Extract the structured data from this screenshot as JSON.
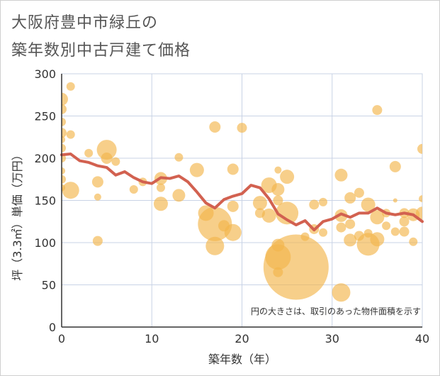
{
  "title_lines": [
    "大阪府豊中市緑丘の",
    "築年数別中古戸建て価格"
  ],
  "chart_data": {
    "type": "scatter",
    "xlabel": "築年数（年）",
    "ylabel": "坪（3.3㎡）単価（万円）",
    "xlim": [
      0,
      40
    ],
    "ylim": [
      0,
      300
    ],
    "x_ticks": [
      0,
      10,
      20,
      30,
      40
    ],
    "y_ticks": [
      0,
      50,
      100,
      150,
      200,
      250,
      300
    ],
    "grid": true,
    "annotation": "円の大きさは、取引のあった物件面積を示す",
    "colors": {
      "bubble": "#f2b54c",
      "line": "#d26150",
      "grid": "#c9d3e6",
      "text": "#333333"
    },
    "series": [
      {
        "type": "bubble",
        "points": [
          {
            "x": 0,
            "y": 270,
            "r": 9
          },
          {
            "x": 0,
            "y": 258,
            "r": 7
          },
          {
            "x": 0,
            "y": 243,
            "r": 6
          },
          {
            "x": 0,
            "y": 230,
            "r": 7
          },
          {
            "x": 0,
            "y": 222,
            "r": 5
          },
          {
            "x": 0,
            "y": 212,
            "r": 6
          },
          {
            "x": 0,
            "y": 200,
            "r": 6
          },
          {
            "x": 0,
            "y": 185,
            "r": 5
          },
          {
            "x": 0,
            "y": 175,
            "r": 6
          },
          {
            "x": 0,
            "y": 165,
            "r": 5
          },
          {
            "x": 1,
            "y": 285,
            "r": 6
          },
          {
            "x": 1,
            "y": 228,
            "r": 6
          },
          {
            "x": 1,
            "y": 162,
            "r": 12
          },
          {
            "x": 3,
            "y": 206,
            "r": 6
          },
          {
            "x": 4,
            "y": 172,
            "r": 8
          },
          {
            "x": 4,
            "y": 154,
            "r": 5
          },
          {
            "x": 4,
            "y": 102,
            "r": 7
          },
          {
            "x": 5,
            "y": 210,
            "r": 14
          },
          {
            "x": 5,
            "y": 200,
            "r": 8
          },
          {
            "x": 6,
            "y": 196,
            "r": 6
          },
          {
            "x": 8,
            "y": 163,
            "r": 6
          },
          {
            "x": 9,
            "y": 172,
            "r": 6
          },
          {
            "x": 11,
            "y": 176,
            "r": 9
          },
          {
            "x": 11,
            "y": 165,
            "r": 6
          },
          {
            "x": 11,
            "y": 146,
            "r": 10
          },
          {
            "x": 13,
            "y": 201,
            "r": 6
          },
          {
            "x": 13,
            "y": 156,
            "r": 9
          },
          {
            "x": 15,
            "y": 186,
            "r": 10
          },
          {
            "x": 16,
            "y": 135,
            "r": 11
          },
          {
            "x": 17,
            "y": 237,
            "r": 8
          },
          {
            "x": 17,
            "y": 122,
            "r": 24
          },
          {
            "x": 17,
            "y": 96,
            "r": 13
          },
          {
            "x": 18,
            "y": 120,
            "r": 8
          },
          {
            "x": 19,
            "y": 187,
            "r": 8
          },
          {
            "x": 19,
            "y": 143,
            "r": 8
          },
          {
            "x": 19,
            "y": 112,
            "r": 12
          },
          {
            "x": 20,
            "y": 236,
            "r": 7
          },
          {
            "x": 22,
            "y": 135,
            "r": 7
          },
          {
            "x": 22,
            "y": 147,
            "r": 10
          },
          {
            "x": 23,
            "y": 168,
            "r": 11
          },
          {
            "x": 23,
            "y": 132,
            "r": 10
          },
          {
            "x": 24,
            "y": 186,
            "r": 5
          },
          {
            "x": 24,
            "y": 163,
            "r": 9
          },
          {
            "x": 24,
            "y": 150,
            "r": 7
          },
          {
            "x": 24,
            "y": 97,
            "r": 9
          },
          {
            "x": 24,
            "y": 83,
            "r": 18
          },
          {
            "x": 24,
            "y": 65,
            "r": 7
          },
          {
            "x": 25,
            "y": 178,
            "r": 10
          },
          {
            "x": 25,
            "y": 135,
            "r": 16
          },
          {
            "x": 26,
            "y": 71,
            "r": 46
          },
          {
            "x": 27,
            "y": 107,
            "r": 6
          },
          {
            "x": 28,
            "y": 145,
            "r": 7
          },
          {
            "x": 28,
            "y": 116,
            "r": 7
          },
          {
            "x": 29,
            "y": 112,
            "r": 6
          },
          {
            "x": 29,
            "y": 148,
            "r": 6
          },
          {
            "x": 31,
            "y": 180,
            "r": 9
          },
          {
            "x": 31,
            "y": 132,
            "r": 9
          },
          {
            "x": 31,
            "y": 118,
            "r": 7
          },
          {
            "x": 31,
            "y": 41,
            "r": 13
          },
          {
            "x": 32,
            "y": 103,
            "r": 9
          },
          {
            "x": 32,
            "y": 122,
            "r": 7
          },
          {
            "x": 32,
            "y": 153,
            "r": 8
          },
          {
            "x": 33,
            "y": 159,
            "r": 7
          },
          {
            "x": 33,
            "y": 108,
            "r": 7
          },
          {
            "x": 34,
            "y": 145,
            "r": 10
          },
          {
            "x": 34,
            "y": 111,
            "r": 6
          },
          {
            "x": 34,
            "y": 98,
            "r": 16
          },
          {
            "x": 35,
            "y": 257,
            "r": 7
          },
          {
            "x": 35,
            "y": 130,
            "r": 10
          },
          {
            "x": 35,
            "y": 104,
            "r": 10
          },
          {
            "x": 36,
            "y": 120,
            "r": 6
          },
          {
            "x": 36,
            "y": 135,
            "r": 6
          },
          {
            "x": 37,
            "y": 190,
            "r": 8
          },
          {
            "x": 37,
            "y": 150,
            "r": 3
          },
          {
            "x": 37,
            "y": 113,
            "r": 6
          },
          {
            "x": 38,
            "y": 135,
            "r": 7
          },
          {
            "x": 38,
            "y": 113,
            "r": 7
          },
          {
            "x": 38,
            "y": 125,
            "r": 7
          },
          {
            "x": 39,
            "y": 133,
            "r": 9
          },
          {
            "x": 39,
            "y": 101,
            "r": 6
          },
          {
            "x": 40,
            "y": 211,
            "r": 7
          },
          {
            "x": 40,
            "y": 152,
            "r": 5
          },
          {
            "x": 40,
            "y": 135,
            "r": 9
          }
        ]
      },
      {
        "type": "line",
        "x": [
          0,
          1,
          2,
          3,
          4,
          5,
          6,
          7,
          8,
          9,
          10,
          11,
          12,
          13,
          14,
          15,
          16,
          17,
          18,
          19,
          20,
          21,
          22,
          23,
          24,
          25,
          26,
          27,
          28,
          29,
          30,
          31,
          32,
          33,
          34,
          35,
          36,
          37,
          38,
          39,
          40
        ],
        "y": [
          204,
          205,
          197,
          195,
          191,
          189,
          180,
          184,
          177,
          172,
          170,
          177,
          176,
          179,
          172,
          160,
          147,
          141,
          151,
          155,
          158,
          168,
          165,
          152,
          134,
          127,
          121,
          126,
          115,
          125,
          128,
          134,
          130,
          135,
          135,
          141,
          135,
          133,
          135,
          133,
          125
        ]
      }
    ]
  }
}
